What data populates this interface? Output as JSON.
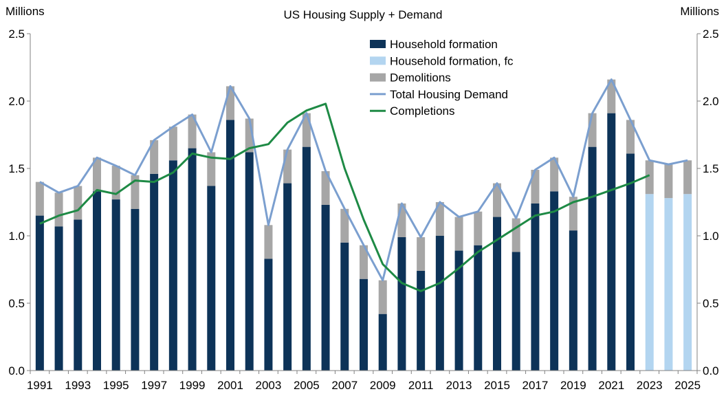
{
  "chart_data": {
    "type": "bar",
    "title": "US Housing Supply + Demand",
    "ylabel_left": "Millions",
    "ylabel_right": "Millions",
    "ylim": [
      0,
      2.5
    ],
    "yticks": [
      "0.0",
      "0.5",
      "1.0",
      "1.5",
      "2.0",
      "2.5"
    ],
    "x_tick_labels": [
      "1991",
      "1993",
      "1995",
      "1997",
      "1999",
      "2001",
      "2003",
      "2005",
      "2007",
      "2009",
      "2011",
      "2013",
      "2015",
      "2017",
      "2019",
      "2021",
      "2023",
      "2025"
    ],
    "grid": false,
    "legend_position": "top-center",
    "categories": [
      "1991",
      "1992",
      "1993",
      "1994",
      "1995",
      "1996",
      "1997",
      "1998",
      "1999",
      "2000",
      "2001",
      "2002",
      "2003",
      "2004",
      "2005",
      "2006",
      "2007",
      "2008",
      "2009",
      "2010",
      "2011",
      "2012",
      "2013",
      "2014",
      "2015",
      "2016",
      "2017",
      "2018",
      "2019",
      "2020",
      "2021",
      "2022",
      "2023",
      "2024",
      "2025"
    ],
    "series": [
      {
        "name": "Household formation",
        "kind": "stacked-bar",
        "color": "#0d3358",
        "values": [
          1.15,
          1.07,
          1.12,
          1.33,
          1.27,
          1.2,
          1.46,
          1.56,
          1.65,
          1.37,
          1.86,
          1.62,
          0.83,
          1.39,
          1.66,
          1.23,
          0.95,
          0.68,
          0.42,
          0.99,
          0.74,
          1.0,
          0.89,
          0.93,
          1.14,
          0.88,
          1.24,
          1.33,
          1.04,
          1.66,
          1.91,
          1.61,
          null,
          null,
          null
        ]
      },
      {
        "name": "Household formation, fc",
        "kind": "stacked-bar",
        "color": "#b3d5f0",
        "values": [
          null,
          null,
          null,
          null,
          null,
          null,
          null,
          null,
          null,
          null,
          null,
          null,
          null,
          null,
          null,
          null,
          null,
          null,
          null,
          null,
          null,
          null,
          null,
          null,
          null,
          null,
          null,
          null,
          null,
          null,
          null,
          null,
          1.31,
          1.28,
          1.31
        ]
      },
      {
        "name": "Demolitions",
        "kind": "stacked-bar",
        "color": "#a6a6a6",
        "values": [
          0.25,
          0.25,
          0.25,
          0.25,
          0.25,
          0.25,
          0.25,
          0.25,
          0.25,
          0.25,
          0.25,
          0.25,
          0.25,
          0.25,
          0.25,
          0.25,
          0.25,
          0.25,
          0.25,
          0.25,
          0.25,
          0.25,
          0.25,
          0.25,
          0.25,
          0.25,
          0.25,
          0.25,
          0.25,
          0.25,
          0.25,
          0.25,
          0.25,
          0.25,
          0.25
        ]
      },
      {
        "name": "Total Housing Demand",
        "kind": "line",
        "color": "#7b9fcf",
        "values": [
          1.4,
          1.32,
          1.37,
          1.58,
          1.52,
          1.45,
          1.71,
          1.81,
          1.9,
          1.62,
          2.11,
          1.87,
          1.08,
          1.64,
          1.91,
          1.48,
          1.2,
          0.93,
          0.67,
          1.24,
          0.99,
          1.25,
          1.14,
          1.18,
          1.39,
          1.13,
          1.49,
          1.58,
          1.29,
          1.91,
          2.16,
          1.86,
          1.56,
          1.53,
          1.56
        ]
      },
      {
        "name": "Completions",
        "kind": "line",
        "color": "#1e8a45",
        "values": [
          1.09,
          1.15,
          1.19,
          1.34,
          1.31,
          1.41,
          1.4,
          1.47,
          1.61,
          1.58,
          1.57,
          1.65,
          1.68,
          1.84,
          1.93,
          1.98,
          1.5,
          1.12,
          0.79,
          0.65,
          0.59,
          0.65,
          0.76,
          0.88,
          0.97,
          1.06,
          1.15,
          1.18,
          1.25,
          1.29,
          1.34,
          1.39,
          1.45,
          null,
          null
        ]
      }
    ]
  }
}
